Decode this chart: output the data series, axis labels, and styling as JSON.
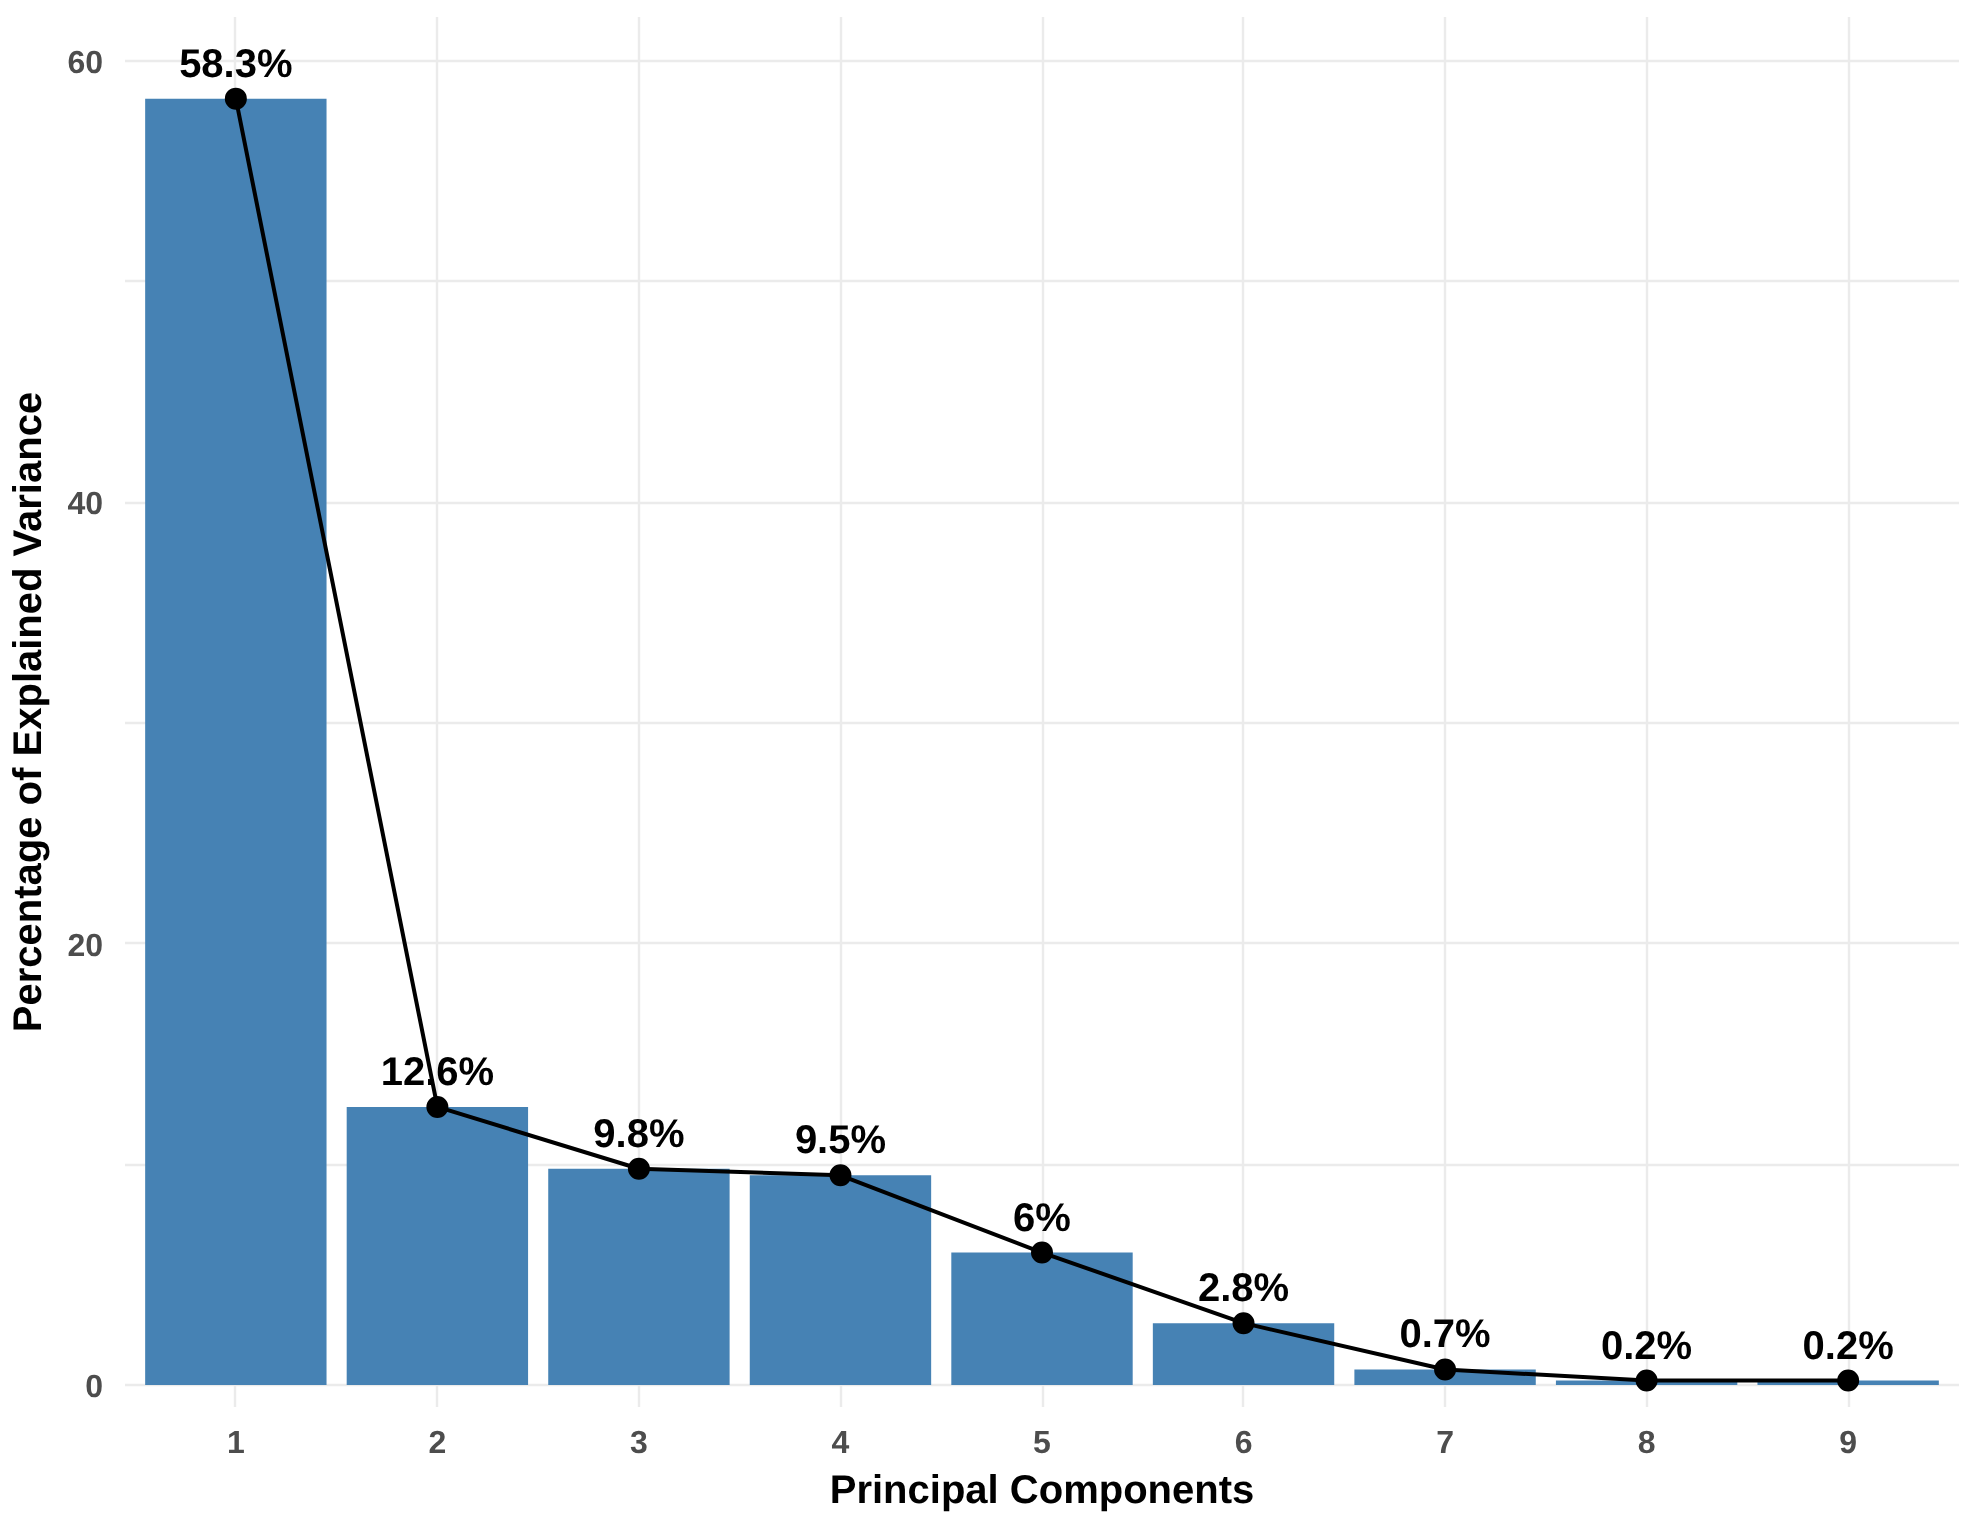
{
  "chart_data": {
    "type": "bar",
    "xlabel": "Principal Components",
    "ylabel": "Percentage of Explained Variance",
    "categories": [
      "1",
      "2",
      "3",
      "4",
      "5",
      "6",
      "7",
      "8",
      "9"
    ],
    "ylim": [
      -1,
      62
    ],
    "yticks": [
      0,
      {
        "value": 10,
        "label": null
      },
      20,
      {
        "value": 30,
        "label": null
      },
      40,
      {
        "value": 50,
        "label": null
      },
      60
    ],
    "grid": true,
    "series": [
      {
        "color": "#4682b4",
        "values": [
          58.3,
          12.6,
          9.8,
          9.5,
          6,
          2.8,
          0.7,
          0.2,
          0.2
        ]
      },
      {
        "type": "line",
        "color": "#000000",
        "marker": "circle",
        "values": [
          58.3,
          12.6,
          9.8,
          9.5,
          6,
          2.8,
          0.7,
          0.2,
          0.2
        ],
        "value_labels": [
          "58.3%",
          "12.6%",
          "9.8%",
          "9.5%",
          "6%",
          "2.8%",
          "0.7%",
          "0.2%",
          "0.2%"
        ]
      }
    ]
  }
}
